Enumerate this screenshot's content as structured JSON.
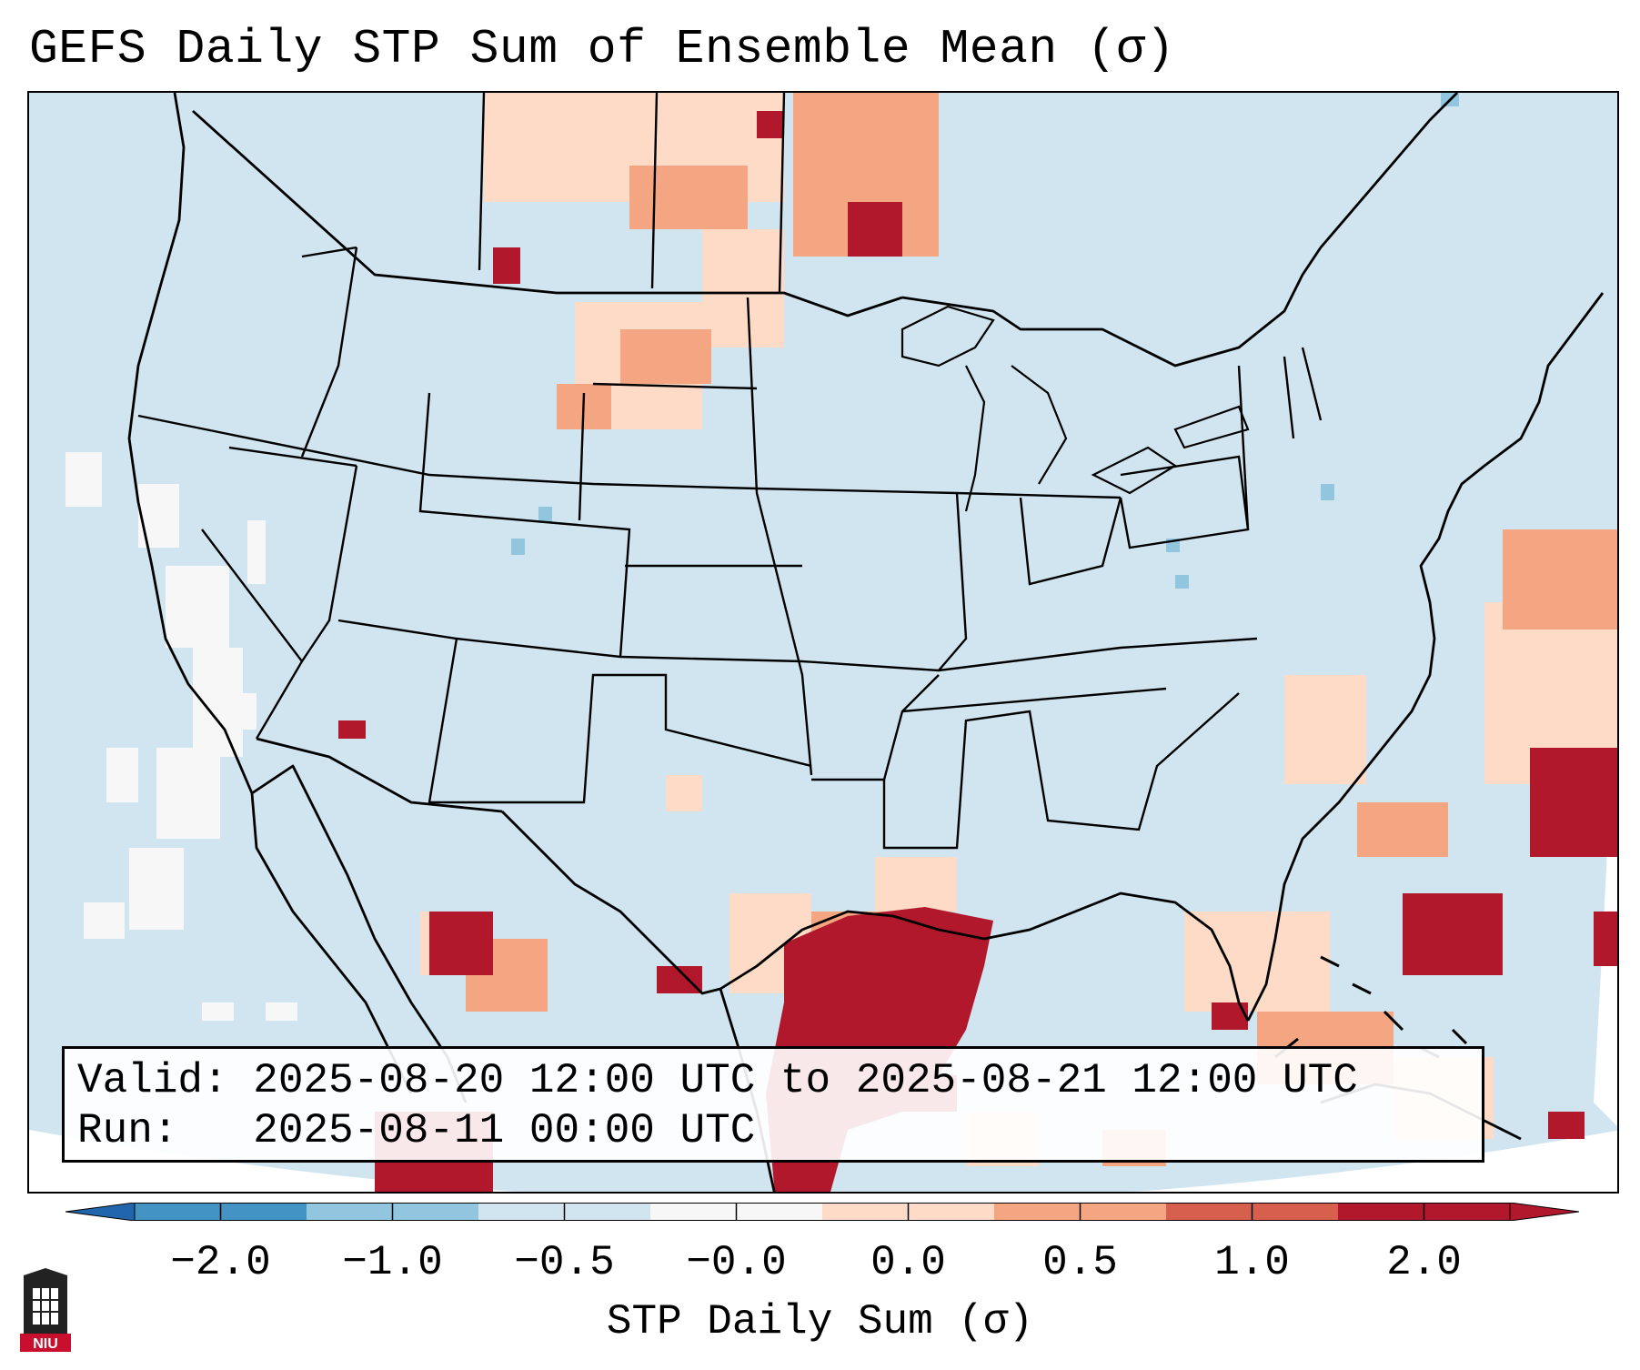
{
  "title": "GEFS Daily STP Sum of Ensemble Mean (σ)",
  "info": {
    "valid_line": "Valid: 2025-08-20 12:00 UTC to 2025-08-21 12:00 UTC",
    "run_line": "Run:   2025-08-11 00:00 UTC"
  },
  "colorbar": {
    "label": "STP Daily Sum (σ)",
    "ticks": [
      "−2.0",
      "−1.0",
      "−0.5",
      "−0.0",
      "0.0",
      "0.5",
      "1.0",
      "2.0"
    ],
    "colors": [
      "#4393c3",
      "#92c5de",
      "#d1e5f0",
      "#f7f7f7",
      "#fddbc7",
      "#f4a582",
      "#d6604d",
      "#b2182b"
    ],
    "extend_low_color": "#2166ac",
    "extend_high_color": "#b2182b"
  },
  "map": {
    "ocean_color": "#d1e5f0",
    "outside_color": "#ffffff",
    "projection_outline": "lambert-conformal",
    "anomaly_regions": [
      {
        "name": "north-dakota-montana",
        "level": "positive-moderate"
      },
      {
        "name": "northern-minnesota",
        "level": "positive-moderate"
      },
      {
        "name": "south-texas-gulf-coast",
        "level": "positive-strong"
      },
      {
        "name": "northern-mexico",
        "level": "positive-strong"
      },
      {
        "name": "western-atlantic",
        "level": "positive-moderate"
      },
      {
        "name": "bahamas-region",
        "level": "positive-strong"
      },
      {
        "name": "off-california-coast",
        "level": "near-zero"
      }
    ]
  },
  "logo": {
    "text": "NIU",
    "color": "#c8102e"
  }
}
